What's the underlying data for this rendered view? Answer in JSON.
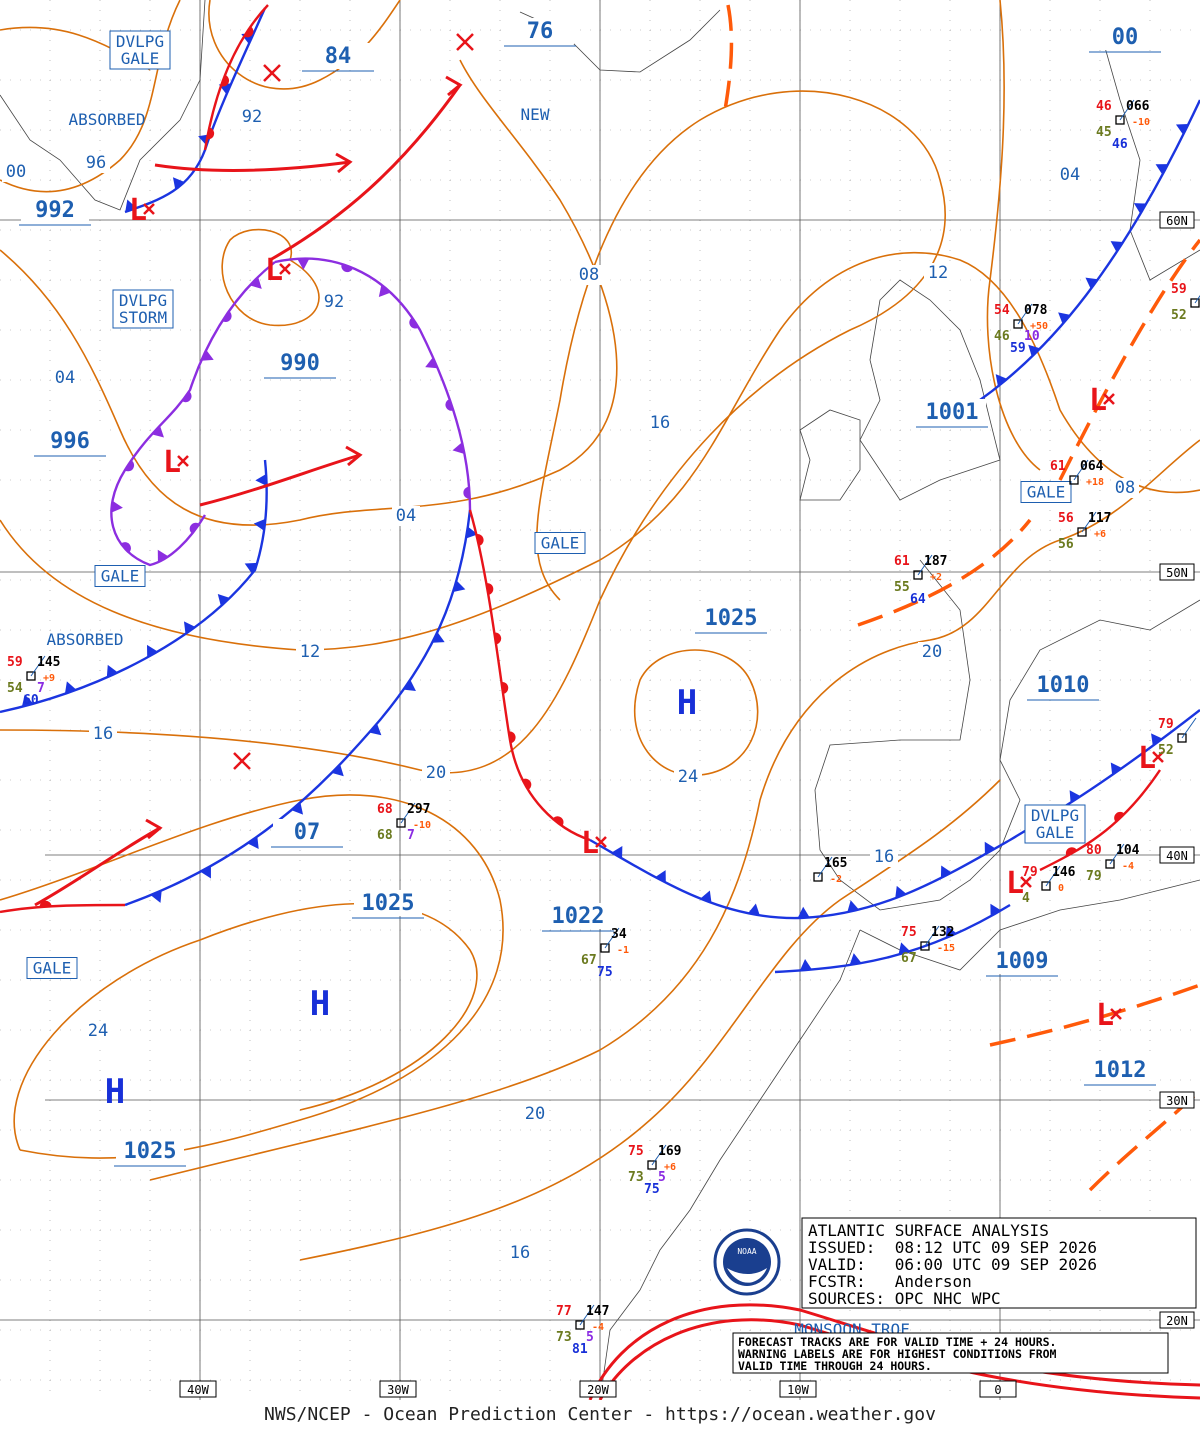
{
  "info_box": {
    "title": "ATLANTIC SURFACE ANALYSIS",
    "issued": "ISSUED:  08:12 UTC 09 SEP 2026",
    "valid": "VALID:   06:00 UTC 09 SEP 2026",
    "forecaster": "FCSTR:   Anderson",
    "sources": "SOURCES: OPC NHC WPC",
    "note": [
      "FORECAST TRACKS ARE FOR VALID TIME + 24 HOURS.",
      "WARNING LABELS ARE FOR HIGHEST CONDITIONS FROM",
      "VALID TIME THROUGH 24 HOURS."
    ],
    "logo": "NOAA"
  },
  "footer": "NWS/NCEP - Ocean Prediction Center - https://ocean.weather.gov",
  "lat_labels": [
    "60N",
    "50N",
    "40N",
    "30N",
    "20N"
  ],
  "lon_labels": [
    "40W",
    "30W",
    "20W",
    "10W",
    "0"
  ],
  "pressure_labels": [
    "84",
    "76",
    "00",
    "992",
    "990",
    "996",
    "1001",
    "1025",
    "1010",
    "07",
    "1025",
    "1022",
    "1009",
    "1012",
    "1025"
  ],
  "isobar_labels": [
    "92",
    "96",
    "00",
    "04",
    "92",
    "08",
    "04",
    "16",
    "12",
    "12",
    "16",
    "20",
    "20",
    "24",
    "16",
    "24",
    "20",
    "16",
    "04",
    "08"
  ],
  "highs": [
    "H",
    "H",
    "H"
  ],
  "lows": [
    "L",
    "L",
    "L",
    "L",
    "L",
    "L",
    "L",
    "L"
  ],
  "warnings": [
    [
      "DVLPG",
      "GALE"
    ],
    [
      "DVLPG",
      "STORM"
    ],
    [
      "GALE"
    ],
    [
      "GALE"
    ],
    [
      "GALE"
    ],
    [
      "GALE"
    ],
    [
      "DVLPG",
      "GALE"
    ]
  ],
  "annotations": [
    "ABSORBED",
    "ABSORBED",
    "NEW",
    "MONSOON TROF"
  ],
  "stations": [
    {
      "temp": "59",
      "pres": "145",
      "dew": "54",
      "vis": "7",
      "wave": "60",
      "tend": "+9"
    },
    {
      "temp": "68",
      "pres": "297",
      "dew": "68",
      "vis": "7",
      "tend": "-10"
    },
    {
      "pres": "34",
      "dew": "67",
      "wave": "75",
      "tend": "-1"
    },
    {
      "temp": "75",
      "pres": "169",
      "dew": "73",
      "vis": "5",
      "wave": "75",
      "tend": "+6"
    },
    {
      "temp": "77",
      "pres": "147",
      "dew": "73",
      "vis": "5",
      "wave": "81",
      "tend": "-4"
    },
    {
      "pres": "165",
      "tend": "-2"
    },
    {
      "temp": "61",
      "pres": "187",
      "dew": "55",
      "wave": "64",
      "tend": "+2"
    },
    {
      "temp": "54",
      "pres": "078",
      "dew": "46",
      "vis": "10",
      "wave": "59",
      "tend": "+50"
    },
    {
      "temp": "46",
      "pres": "066",
      "dew": "45",
      "wave": "46",
      "tend": "-10"
    },
    {
      "temp": "61",
      "pres": "064",
      "tend": "+18"
    },
    {
      "temp": "56",
      "pres": "117",
      "dew": "56",
      "tend": "+6"
    },
    {
      "temp": "79",
      "pres": "146",
      "dew": "4",
      "tend": "0"
    },
    {
      "temp": "80",
      "pres": "104",
      "dew": "79",
      "tend": "-4"
    },
    {
      "temp": "75",
      "pres": "132",
      "dew": "67",
      "tend": "-15"
    },
    {
      "temp": "79",
      "dew": "52"
    },
    {
      "temp": "59",
      "dew": "52"
    }
  ]
}
